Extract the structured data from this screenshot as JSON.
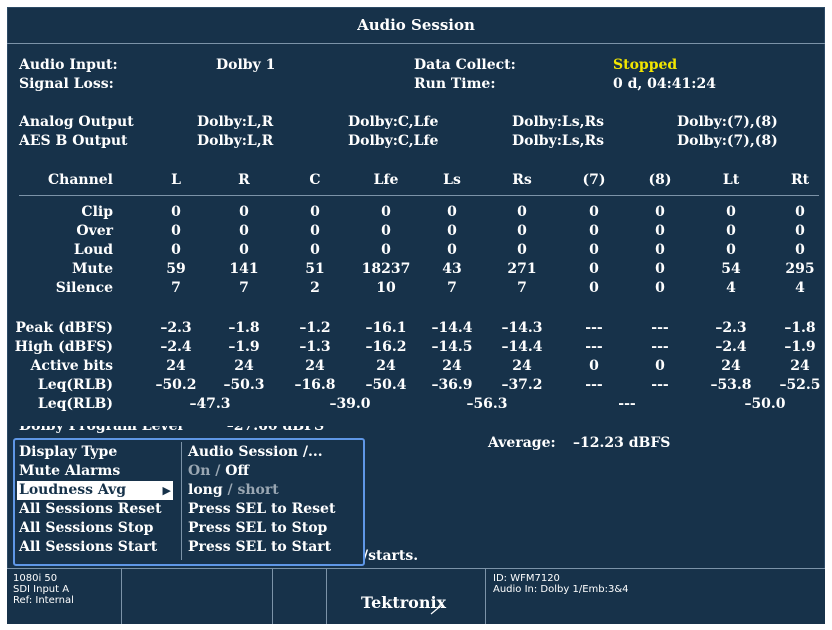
{
  "title": "Audio Session",
  "info": {
    "audio_input_label": "Audio Input:",
    "audio_input_value": "Dolby 1",
    "signal_loss_label": "Signal Loss:",
    "data_collect_label": "Data Collect:",
    "data_collect_value": "Stopped",
    "run_time_label": "Run Time:",
    "run_time_value": "0 d, 04:41:24"
  },
  "outputs": {
    "analog_label": "Analog Output",
    "aes_label": "AES B Output",
    "analog": [
      "Dolby:L,R",
      "Dolby:C,Lfe",
      "Dolby:Ls,Rs",
      "Dolby:(7),(8)"
    ],
    "aes": [
      "Dolby:L,R",
      "Dolby:C,Lfe",
      "Dolby:Ls,Rs",
      "Dolby:(7),(8)"
    ]
  },
  "table": {
    "channel_label": "Channel",
    "channels": [
      "L",
      "R",
      "C",
      "Lfe",
      "Ls",
      "Rs",
      "(7)",
      "(8)",
      "Lt",
      "Rt"
    ],
    "rows": [
      {
        "label": "Clip",
        "values": [
          "0",
          "0",
          "0",
          "0",
          "0",
          "0",
          "0",
          "0",
          "0",
          "0"
        ]
      },
      {
        "label": "Over",
        "values": [
          "0",
          "0",
          "0",
          "0",
          "0",
          "0",
          "0",
          "0",
          "0",
          "0"
        ]
      },
      {
        "label": "Loud",
        "values": [
          "0",
          "0",
          "0",
          "0",
          "0",
          "0",
          "0",
          "0",
          "0",
          "0"
        ]
      },
      {
        "label": "Mute",
        "values": [
          "59",
          "141",
          "51",
          "18237",
          "43",
          "271",
          "0",
          "0",
          "54",
          "295"
        ]
      },
      {
        "label": "Silence",
        "values": [
          "7",
          "7",
          "2",
          "10",
          "7",
          "7",
          "0",
          "0",
          "4",
          "4"
        ]
      },
      {
        "label": "Peak (dBFS)",
        "values": [
          "–2.3",
          "–1.8",
          "–1.2",
          "–16.1",
          "–14.4",
          "–14.3",
          "---",
          "---",
          "–2.3",
          "–1.8"
        ]
      },
      {
        "label": "High (dBFS)",
        "values": [
          "–2.4",
          "–1.9",
          "–1.3",
          "–16.2",
          "–14.5",
          "–14.4",
          "---",
          "---",
          "–2.4",
          "–1.9"
        ]
      },
      {
        "label": "Active bits",
        "values": [
          "24",
          "24",
          "24",
          "24",
          "24",
          "24",
          "0",
          "0",
          "24",
          "24"
        ]
      },
      {
        "label": "Leq(RLB)",
        "values": [
          "–50.2",
          "–50.3",
          "–16.8",
          "–50.4",
          "–36.9",
          "–37.2",
          "---",
          "---",
          "–53.8",
          "–52.5"
        ]
      }
    ],
    "pair_row": {
      "label": "Leq(RLB)",
      "values": [
        "–47.3",
        "–39.0",
        "–56.3",
        "---",
        "–50.0"
      ]
    }
  },
  "average": {
    "label": "Average:",
    "value": "–12.23 dBFS"
  },
  "partial_text": "/starts.",
  "menu": {
    "items": [
      {
        "label": "Display Type",
        "value": "Audio Session /..."
      },
      {
        "label": "Mute Alarms",
        "value_on": "On",
        "value_sep": "/",
        "value_off": "Off"
      },
      {
        "label": "Loudness Avg",
        "value_on": "long",
        "value_sep": "/",
        "value_off": "short"
      },
      {
        "label": "All Sessions Reset",
        "value": "Press SEL to Reset"
      },
      {
        "label": "All Sessions Stop",
        "value": "Press SEL to Stop"
      },
      {
        "label": "All Sessions Start",
        "value": "Press SEL to Start"
      }
    ]
  },
  "status": {
    "format": "1080i 50",
    "input": "SDI Input A",
    "ref": "Ref: Internal",
    "brand": "Tektronix",
    "id": "ID: WFM7120",
    "audio_in": "Audio In: Dolby 1/Emb:3&4"
  },
  "colors": {
    "background": "#17324a",
    "highlight": "#f2e600",
    "menu_border": "#5f97e6"
  }
}
